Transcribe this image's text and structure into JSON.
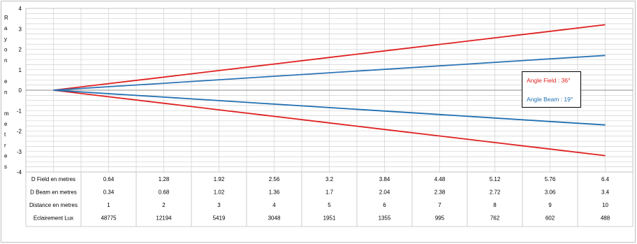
{
  "chart_data": {
    "type": "line",
    "ylabel": "Rayon en metres",
    "ylim": [
      -4,
      4
    ],
    "yticks": [
      "4",
      "3",
      "2",
      "1",
      "0",
      "-1",
      "-2",
      "-3",
      "-4"
    ],
    "x": [
      0,
      1,
      2,
      3,
      4,
      5,
      6,
      7,
      8,
      9,
      10
    ],
    "series": [
      {
        "name": "Angle Field : 36°",
        "color": "#e02020",
        "values": [
          0,
          0.32,
          0.64,
          0.96,
          1.28,
          1.6,
          1.92,
          2.24,
          2.56,
          2.88,
          3.2
        ]
      },
      {
        "name": "Angle Field : 36°",
        "color": "#e02020",
        "values": [
          0,
          -0.32,
          -0.64,
          -0.96,
          -1.28,
          -1.6,
          -1.92,
          -2.24,
          -2.56,
          -2.88,
          -3.2
        ]
      },
      {
        "name": "Angle Beam : 19°",
        "color": "#2e75b6",
        "values": [
          0,
          0.17,
          0.34,
          0.51,
          0.68,
          0.85,
          1.02,
          1.19,
          1.36,
          1.53,
          1.7
        ]
      },
      {
        "name": "Angle Beam : 19°",
        "color": "#1f6fb2",
        "values": [
          0,
          -0.17,
          -0.34,
          -0.51,
          -0.68,
          -0.85,
          -1.02,
          -1.19,
          -1.36,
          -1.53,
          -1.7
        ]
      }
    ],
    "legend": {
      "position": "right",
      "field_label": "Angle Field : 36°",
      "beam_label": "Angle Beam : 19°",
      "field_color": "#e02020",
      "beam_color": "#1f6fb2"
    },
    "grid": true,
    "table": {
      "rows": [
        {
          "label": "D Field en metres",
          "values": [
            "0.64",
            "1.28",
            "1.92",
            "2.56",
            "3.2",
            "3.84",
            "4.48",
            "5.12",
            "5.76",
            "6.4"
          ]
        },
        {
          "label": "D Beam en metres",
          "values": [
            "0.34",
            "0.68",
            "1.02",
            "1.36",
            "1.7",
            "2.04",
            "2.38",
            "2.72",
            "3.06",
            "3.4"
          ]
        },
        {
          "label": "Distance en metres",
          "values": [
            "1",
            "2",
            "3",
            "4",
            "5",
            "6",
            "7",
            "8",
            "9",
            "10"
          ]
        },
        {
          "label": "Eclairement Lux",
          "values": [
            "48775",
            "12194",
            "5419",
            "3048",
            "1951",
            "1355",
            "995",
            "762",
            "602",
            "488"
          ]
        }
      ]
    }
  }
}
